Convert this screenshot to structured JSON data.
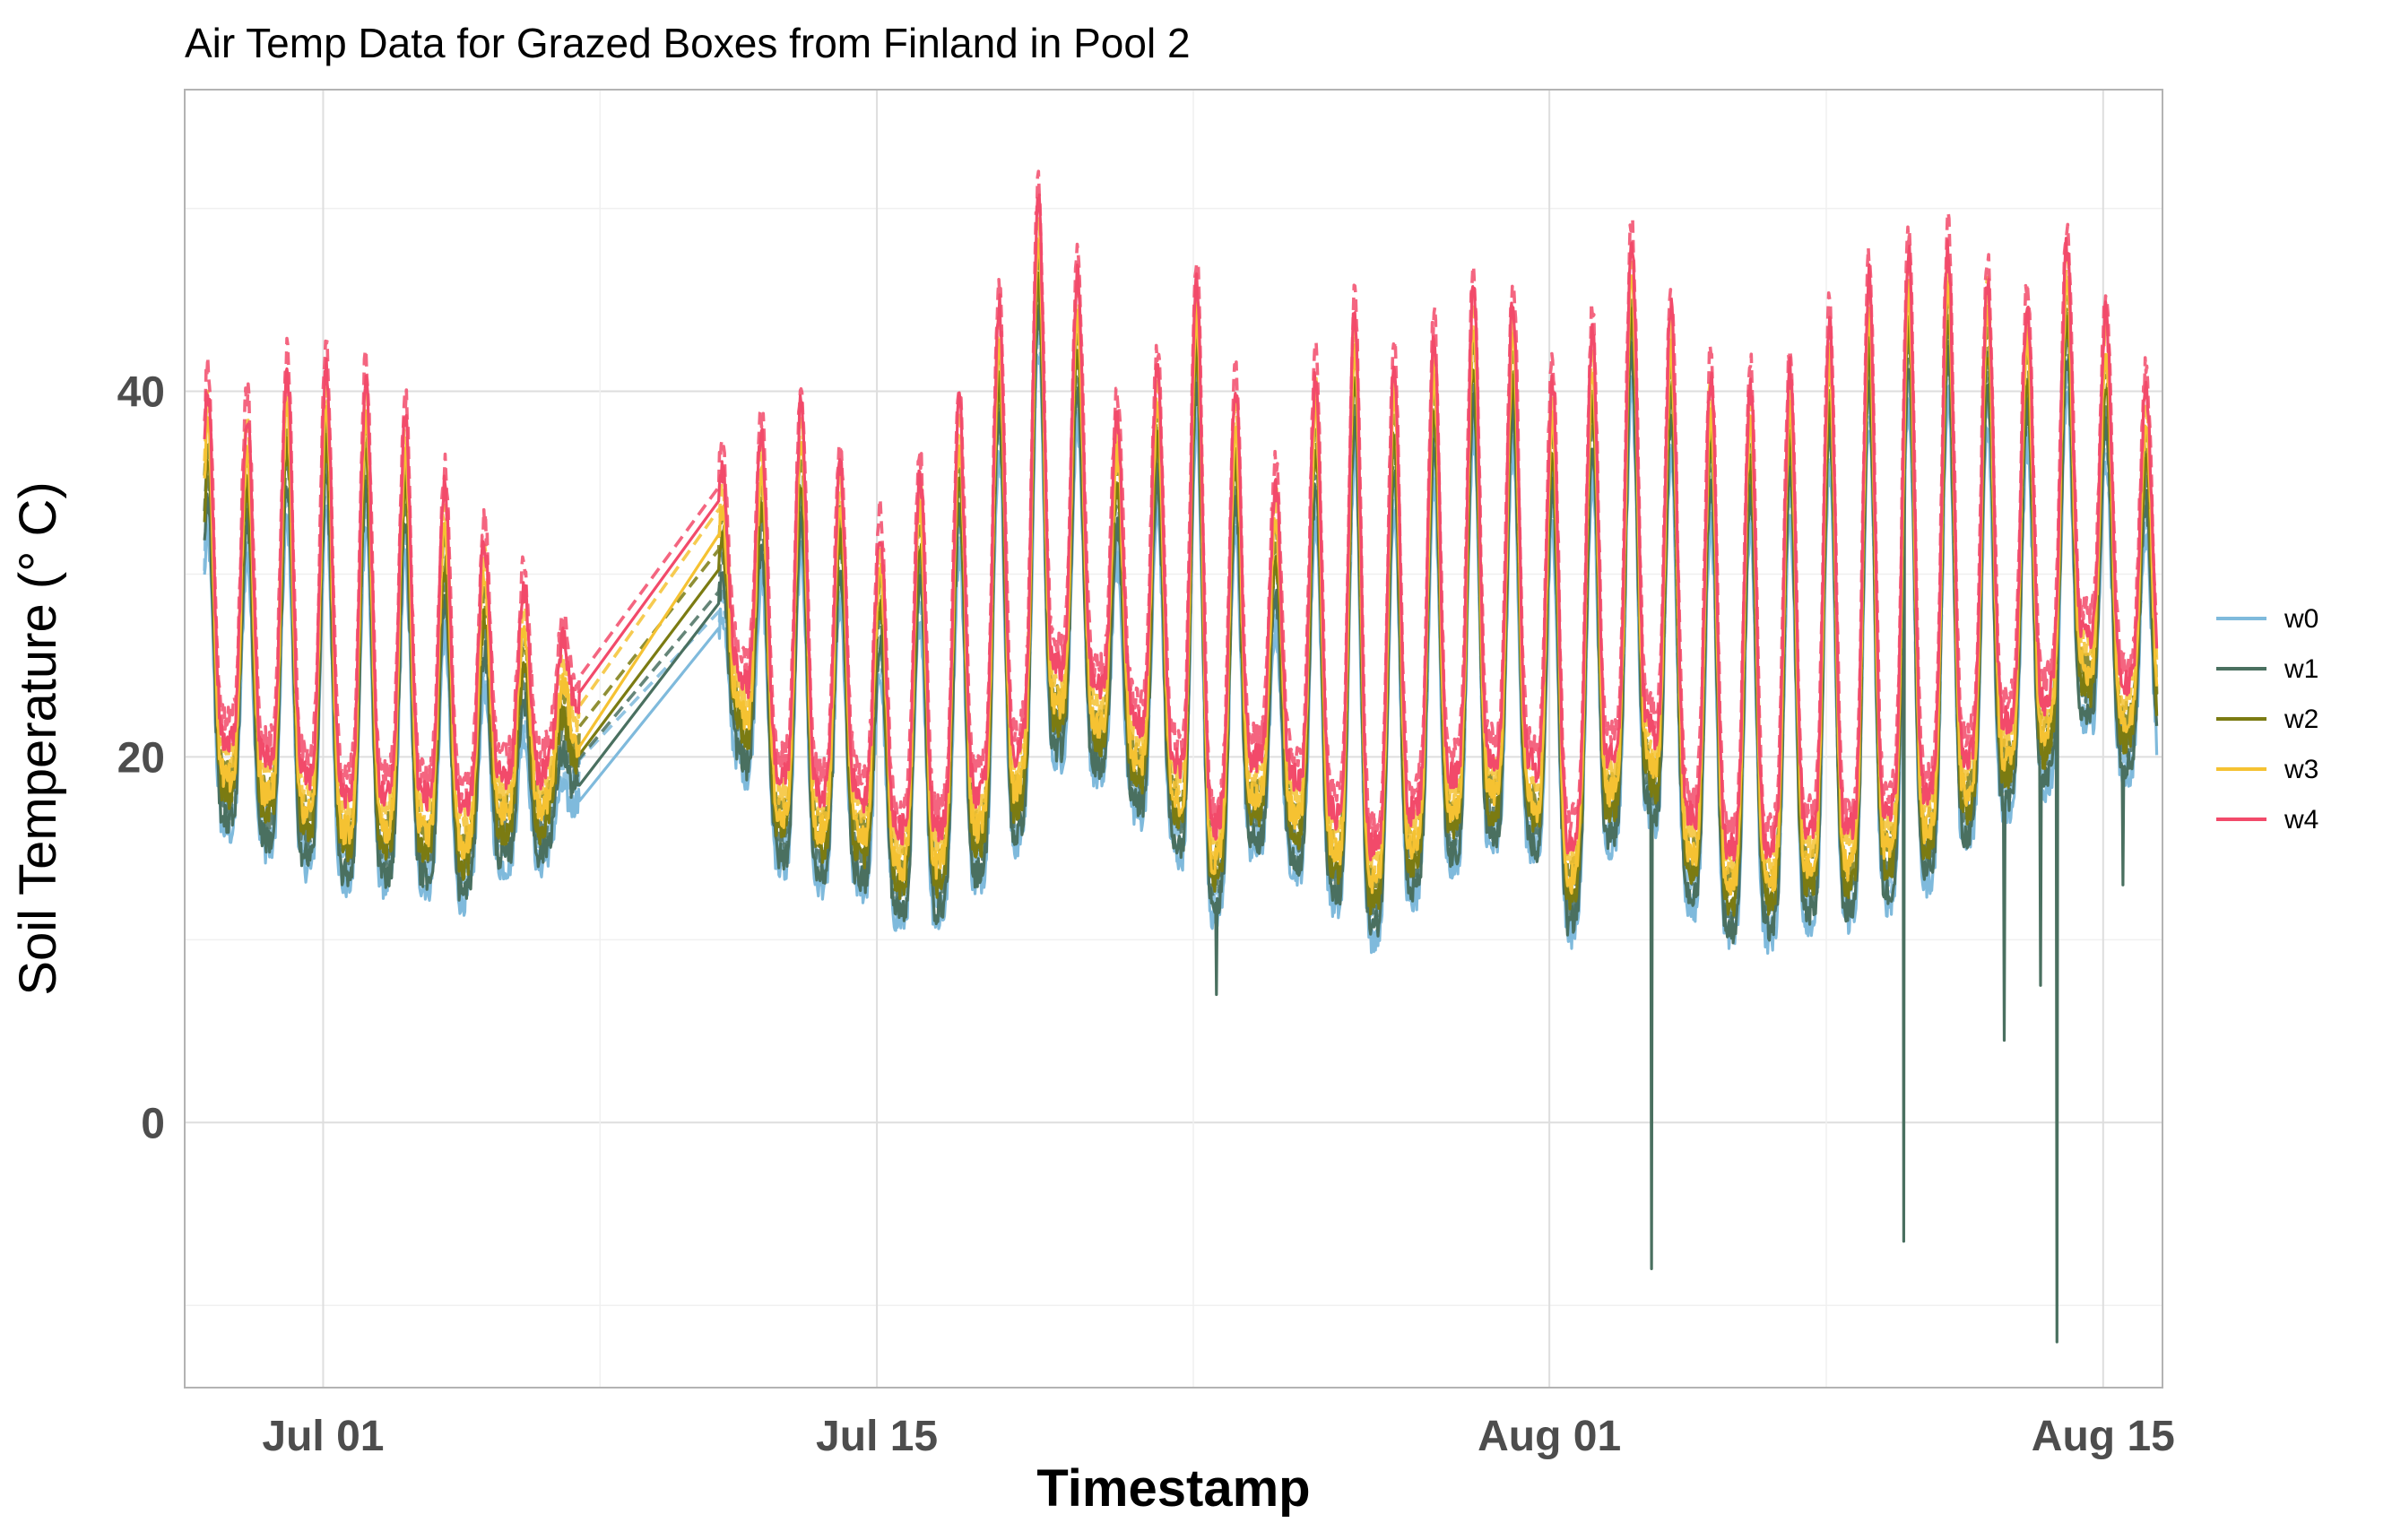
{
  "chart_data": {
    "type": "line",
    "title": "Air Temp Data for Grazed Boxes from Finland in Pool 2",
    "xlabel": "Timestamp",
    "ylabel": "Soil Temperature (° C)",
    "x_range": [
      "2024-06-27T12:00",
      "2024-08-16T12:00"
    ],
    "ylim": [
      -14.5,
      56.5
    ],
    "y_ticks": [
      0,
      20,
      40
    ],
    "x_ticks": [
      {
        "date": "2024-07-01",
        "label": "Jul 01"
      },
      {
        "date": "2024-07-15",
        "label": "Jul 15"
      },
      {
        "date": "2024-08-01",
        "label": "Aug 01"
      },
      {
        "date": "2024-08-15",
        "label": "Aug 15"
      }
    ],
    "grid": true,
    "legend_position": "right",
    "line_styles": "solid and dashed variants per series",
    "gap": {
      "from": "2024-07-07T12:00",
      "to": "2024-07-11T00:00"
    },
    "daily_series": {
      "dates": [
        "2024-06-28",
        "2024-06-29",
        "2024-06-30",
        "2024-07-01",
        "2024-07-02",
        "2024-07-03",
        "2024-07-04",
        "2024-07-05",
        "2024-07-06",
        "2024-07-07",
        "2024-07-11",
        "2024-07-12",
        "2024-07-13",
        "2024-07-14",
        "2024-07-15",
        "2024-07-16",
        "2024-07-17",
        "2024-07-18",
        "2024-07-19",
        "2024-07-20",
        "2024-07-21",
        "2024-07-22",
        "2024-07-23",
        "2024-07-24",
        "2024-07-25",
        "2024-07-26",
        "2024-07-27",
        "2024-07-28",
        "2024-07-29",
        "2024-07-30",
        "2024-07-31",
        "2024-08-01",
        "2024-08-02",
        "2024-08-03",
        "2024-08-04",
        "2024-08-05",
        "2024-08-06",
        "2024-08-07",
        "2024-08-08",
        "2024-08-09",
        "2024-08-10",
        "2024-08-11",
        "2024-08-12",
        "2024-08-13",
        "2024-08-14",
        "2024-08-15",
        "2024-08-16"
      ],
      "daily_min_w4": [
        27,
        24,
        20,
        18,
        17,
        17,
        16,
        16,
        16,
        16,
        16,
        19,
        17,
        16,
        16,
        15,
        15,
        16,
        20,
        20,
        22,
        22,
        21,
        17,
        20,
        20,
        18,
        16,
        18,
        19,
        20,
        21,
        20,
        22,
        20,
        18,
        17,
        18,
        18,
        19,
        18,
        19,
        20,
        20,
        25,
        26,
        26
      ],
      "daily_max_w4": [
        40,
        38,
        43,
        40,
        41,
        37,
        33,
        31,
        28,
        25,
        37,
        38,
        40,
        33,
        32,
        38,
        40,
        48,
        52,
        42,
        36,
        45,
        47,
        35,
        35,
        45,
        44,
        40,
        45,
        46,
        44,
        38,
        47,
        49,
        41,
        41,
        40,
        42,
        45,
        47,
        48,
        48,
        45,
        45,
        50,
        40,
        40
      ],
      "daily_min_w0": [
        16,
        15,
        14,
        13,
        13,
        13,
        12,
        14,
        14,
        18,
        20,
        14,
        13,
        13,
        11,
        11,
        13,
        15,
        20,
        19,
        17,
        15,
        11,
        15,
        14,
        12,
        10,
        12,
        14,
        15,
        15,
        10,
        15,
        17,
        12,
        10,
        10,
        11,
        11,
        12,
        13,
        15,
        17,
        18,
        22,
        19,
        19
      ],
      "notes": "Traces below are sampled at the resolution of the rendered image; w1 shows sensor dropout spikes reaching about -8 on Aug 03, -7 on Aug 09 and -12 on Aug 13."
    },
    "series": [
      {
        "name": "w0",
        "color": "#7fbadc"
      },
      {
        "name": "w1",
        "color": "#4a7060"
      },
      {
        "name": "w2",
        "color": "#7b7b12"
      },
      {
        "name": "w3",
        "color": "#f5c232"
      },
      {
        "name": "w4",
        "color": "#f24a6a"
      }
    ]
  }
}
